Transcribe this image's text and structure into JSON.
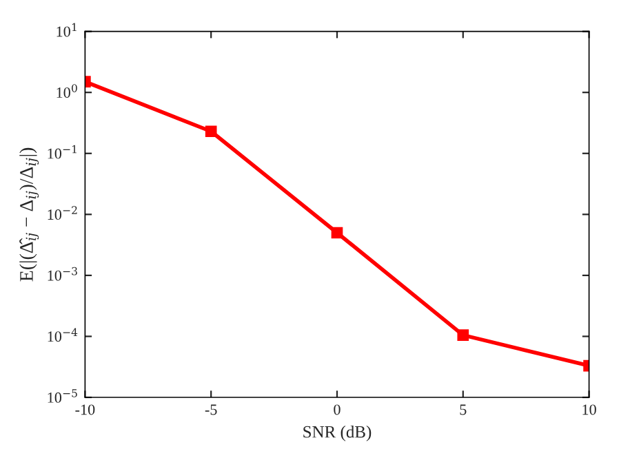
{
  "chart_data": {
    "type": "line",
    "xlabel": "SNR (dB)",
    "ylabel": "E(|(Δ̂$_{ij}$ − Δ$_{ij}$)/Δ$_{ij}$|)",
    "x": [
      -10,
      -5,
      0,
      5,
      10
    ],
    "series": [
      {
        "color": "#ff0000",
        "values": [
          1.5,
          0.23,
          0.005,
          0.000105,
          3.3e-05
        ]
      }
    ],
    "xlim": [
      -10,
      10
    ],
    "xticks": [
      -10,
      -5,
      0,
      5,
      10
    ],
    "ylim": [
      1e-05,
      10
    ],
    "log": true,
    "yticks": [
      {
        "value": 1e-05,
        "label": "10$^{−5}$"
      },
      {
        "value": 0.0001,
        "label": "10$^{−4}$"
      },
      {
        "value": 0.001,
        "label": "10$^{−3}$"
      },
      {
        "value": 0.01,
        "label": "10$^{−2}$"
      },
      {
        "value": 0.1,
        "label": "10$^{−1}$"
      },
      {
        "value": 1,
        "label": "10$^{0}$"
      },
      {
        "value": 10,
        "label": "10$^{1}$"
      }
    ],
    "marker": "square",
    "line_style": "solid",
    "grid": false,
    "legend": false
  }
}
